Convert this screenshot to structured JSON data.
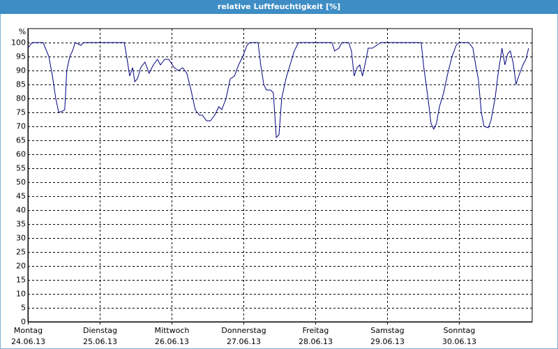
{
  "chart_data": {
    "type": "line",
    "title": "relative Luftfeuchtigkeit [%]",
    "y_unit": "%",
    "ylim": [
      0,
      105
    ],
    "yticks": [
      0,
      5,
      10,
      15,
      20,
      25,
      30,
      35,
      40,
      45,
      50,
      55,
      60,
      65,
      70,
      75,
      80,
      85,
      90,
      95,
      100
    ],
    "xlim": [
      0,
      168.5
    ],
    "xticks": [
      {
        "value": 0,
        "label": "Montag",
        "date": "24.06.13"
      },
      {
        "value": 24,
        "label": "Dienstag",
        "date": "25.06.13"
      },
      {
        "value": 48,
        "label": "Mittwoch",
        "date": "26.06.13"
      },
      {
        "value": 72,
        "label": "Donnerstag",
        "date": "27.06.13"
      },
      {
        "value": 96,
        "label": "Freitag",
        "date": "28.06.13"
      },
      {
        "value": 120,
        "label": "Samstag",
        "date": "29.06.13"
      },
      {
        "value": 144,
        "label": "Sonntag",
        "date": "30.06.13"
      }
    ],
    "grid": true,
    "color": "#000080",
    "x": [
      0,
      1.4,
      5.1,
      7,
      8.2,
      9.3,
      10.3,
      11.7,
      12.3,
      13,
      14,
      14.9,
      15.8,
      16.8,
      17.7,
      18.6,
      32.2,
      33.3,
      34,
      35,
      35.7,
      36.6,
      37.7,
      39.1,
      40.5,
      41.9,
      43.3,
      44.3,
      45.7,
      47.1,
      48.9,
      50.3,
      51.7,
      53.1,
      54.5,
      55.9,
      57.3,
      58.3,
      59.7,
      61,
      62.4,
      63.8,
      64.8,
      66.2,
      67.6,
      69,
      70.4,
      71.8,
      73.2,
      74.1,
      76.9,
      77.8,
      78.8,
      79.7,
      81.1,
      82,
      83,
      83.9,
      84.8,
      86.2,
      87.6,
      89,
      90.4,
      101.6,
      102.5,
      103.9,
      104.9,
      107.2,
      108.1,
      109,
      110,
      110.9,
      111.8,
      112.8,
      113.7,
      115.1,
      116.5,
      117.9,
      131.4,
      132.3,
      133.7,
      134.7,
      135.6,
      136.5,
      137.5,
      138.9,
      140.3,
      141.7,
      143.1,
      144,
      147.3,
      148.7,
      149.6,
      150.5,
      151.5,
      152.4,
      153.8,
      154.7,
      156.1,
      157,
      158.4,
      159.4,
      160.3,
      161.2,
      162.1,
      163.1,
      164,
      165.4,
      166.4,
      167.3
    ],
    "values": [
      98,
      100,
      100,
      95,
      88,
      80,
      75,
      75.5,
      76,
      90,
      95,
      97,
      100,
      99.5,
      99,
      100,
      100,
      93,
      88,
      91,
      86,
      87,
      91,
      93,
      89,
      92,
      94,
      92,
      94,
      94,
      91,
      90,
      91,
      89,
      83,
      76,
      74,
      74,
      72,
      72,
      74,
      77,
      76,
      80,
      87,
      88,
      92,
      95,
      99,
      100,
      100,
      92,
      85,
      83,
      83,
      82,
      66,
      67,
      80,
      87,
      92,
      97,
      100,
      100,
      97,
      98,
      100,
      100,
      97,
      88,
      91,
      92,
      88,
      93,
      98,
      98,
      99,
      100,
      100,
      91,
      80,
      71,
      69,
      71,
      77,
      82,
      89,
      95,
      99,
      100,
      100,
      98,
      92,
      87,
      75,
      70,
      69.5,
      72,
      80,
      88,
      98,
      92,
      96,
      97,
      93,
      85,
      88,
      92,
      94,
      98
    ]
  }
}
